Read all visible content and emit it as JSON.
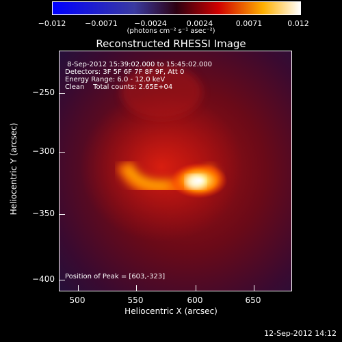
{
  "colorbar": {
    "ticks": [
      "−0.012",
      "−0.0071",
      "−0.0024",
      "0.0024",
      "0.0071",
      "0.012"
    ],
    "units": "(photons cm⁻² s⁻¹ asec⁻²)"
  },
  "plot": {
    "title": "Reconstructed RHESSI Image",
    "info_lines": [
      " 8-Sep-2012 15:39:02.000 to 15:45:02.000",
      "Detectors: 3F 5F 6F 7F 8F 9F, Att 0",
      "Energy Range: 6.0 - 12.0 keV",
      "Clean    Total counts: 2.65E+04"
    ],
    "peak_label": "Position of Peak = [603,-323]",
    "x_ticks": [
      "500",
      "550",
      "600",
      "650"
    ],
    "y_ticks": [
      "−250",
      "−300",
      "−350",
      "−400"
    ],
    "x_title": "Heliocentric X (arcsec)",
    "y_title": "Heliocentric Y (arcsec)"
  },
  "footer": {
    "timestamp": "12-Sep-2012 14:12"
  },
  "colors": {
    "low": "#2a0a3a",
    "mid": "#b01010",
    "high": "#fff6b0"
  }
}
